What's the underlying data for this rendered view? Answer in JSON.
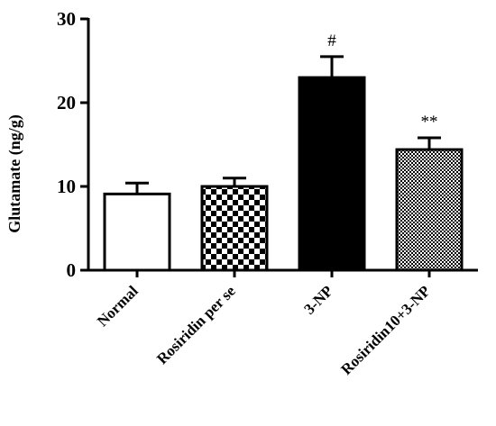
{
  "chart_data": {
    "type": "bar",
    "title": "",
    "xlabel": "",
    "ylabel": "Glutamate (ng/g)",
    "ylim": [
      0,
      30
    ],
    "yticks": [
      0,
      10,
      20,
      30
    ],
    "grid": false,
    "legend": "none",
    "categories": [
      "Normal",
      "Rosiridin per se",
      "3-NP",
      "Rosiridin10+3-NP"
    ],
    "values": [
      9.1,
      10.0,
      23.0,
      14.4
    ],
    "errors": [
      1.3,
      1.0,
      2.5,
      1.4
    ],
    "fills": [
      "white",
      "checker",
      "solid",
      "fine-checker"
    ],
    "annotations": [
      "",
      "",
      "#",
      "**"
    ],
    "colors": {
      "bar_stroke": "#000000",
      "solid_fill": "#000000"
    }
  }
}
